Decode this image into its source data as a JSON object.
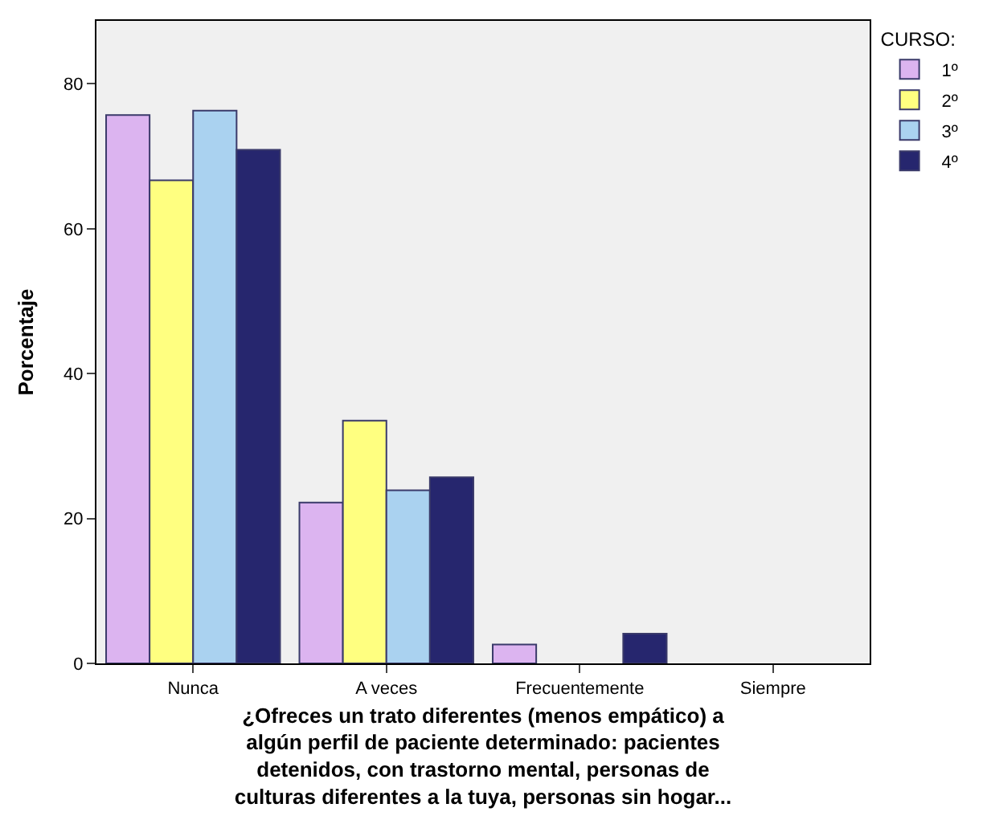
{
  "chart_data": {
    "type": "bar",
    "xlabel": "¿Ofreces un trato diferentes (menos empático) a\nalgún perfil de paciente determinado: pacientes\ndetenidos, con trastorno mental, personas de\nculturas diferentes a la tuya, personas sin hogar...",
    "ylabel": "Porcentaje",
    "legend_title": "CURSO:",
    "categories": [
      "Nunca",
      "A veces",
      "Frecuentemente",
      "Siempre"
    ],
    "series": [
      {
        "name": "1º",
        "color": "#dcb4f0",
        "values": [
          75.7,
          22.2,
          2.6,
          0
        ]
      },
      {
        "name": "2º",
        "color": "#ffff80",
        "values": [
          66.7,
          33.5,
          0,
          0
        ]
      },
      {
        "name": "3º",
        "color": "#aad2f0",
        "values": [
          76.3,
          23.9,
          0,
          0
        ]
      },
      {
        "name": "4º",
        "color": "#26266e",
        "values": [
          70.9,
          25.7,
          4.1,
          0
        ]
      }
    ],
    "ylim": [
      0,
      88.7
    ],
    "yticks": [
      0,
      20,
      40,
      60,
      80
    ],
    "grid": false,
    "legend": "top right"
  }
}
